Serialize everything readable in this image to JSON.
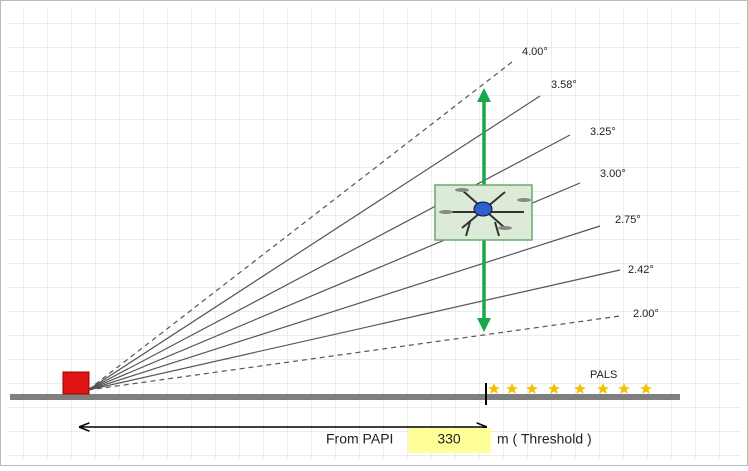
{
  "angles": [
    "4.00°",
    "3.58°",
    "3.25°",
    "3.00°",
    "2.75°",
    "2.42°",
    "2.00°"
  ],
  "pals": "PALS",
  "distance": {
    "prefix": "From PAPI",
    "value": "330",
    "suffix": "m ( Threshold )"
  }
}
